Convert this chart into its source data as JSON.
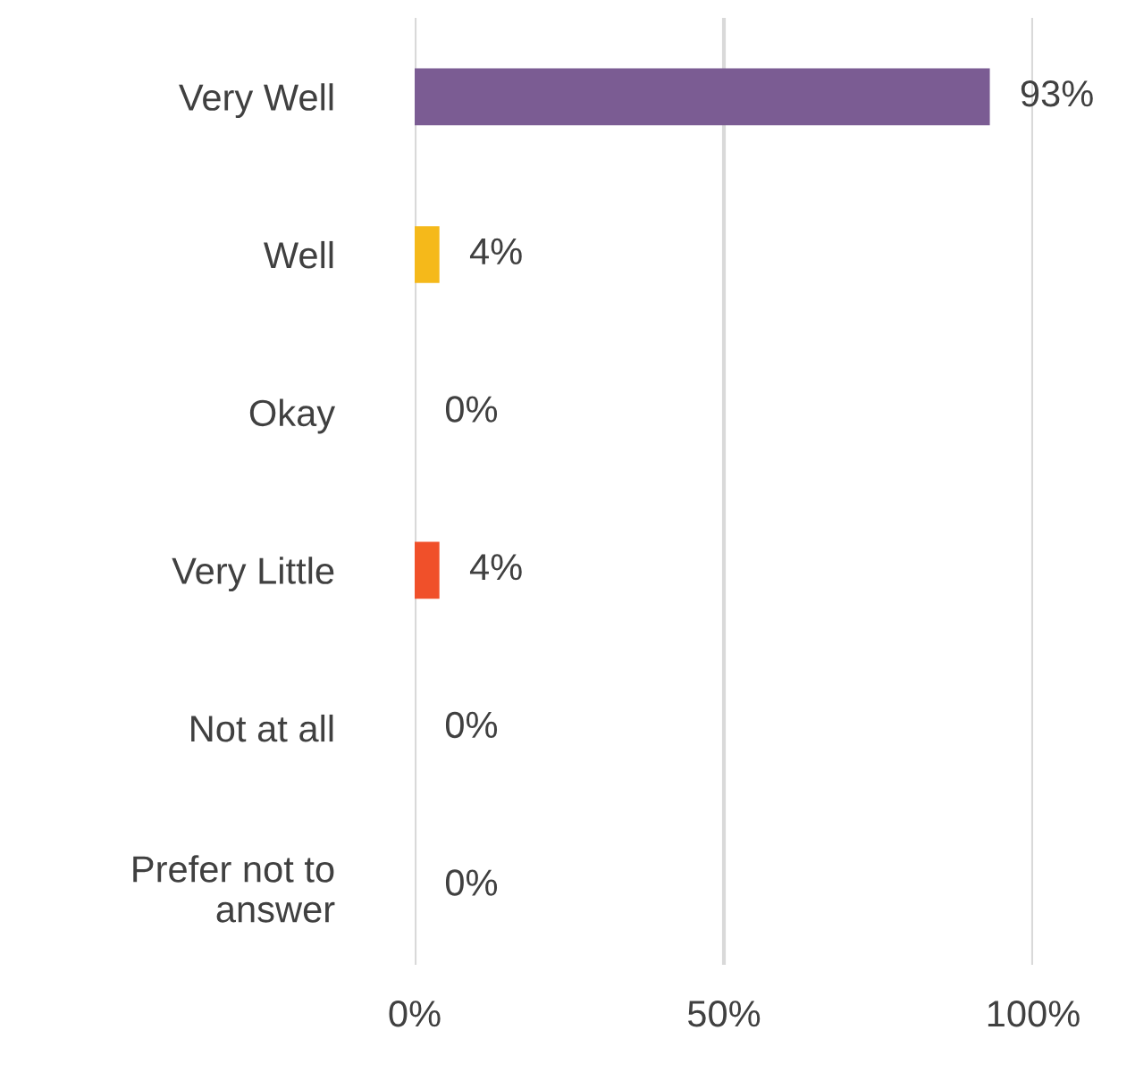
{
  "chart_data": {
    "type": "bar",
    "orientation": "horizontal",
    "categories": [
      "Very Well",
      "Well",
      "Okay",
      "Very Little",
      "Not at all",
      "Prefer not to\nanswer"
    ],
    "values": [
      93,
      4,
      0,
      4,
      0,
      0
    ],
    "colors": [
      "#7b5c93",
      "#f5b91a",
      null,
      "#f0502a",
      null,
      null
    ],
    "value_labels": [
      "93%",
      "4%",
      "0%",
      "4%",
      "0%",
      "0%"
    ],
    "xlim": [
      0,
      100
    ],
    "xticks": [
      {
        "value": 0,
        "label": "0%"
      },
      {
        "value": 50,
        "label": "50%"
      },
      {
        "value": 100,
        "label": "100%"
      }
    ],
    "grid": "x",
    "legend": false
  }
}
